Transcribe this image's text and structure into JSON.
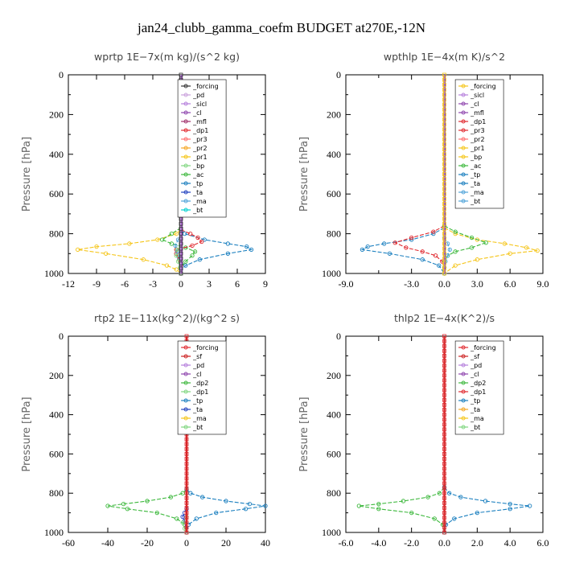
{
  "figure_title": "jan24_clubb_gamma_coefm  BUDGET at270E,-12N",
  "chart_data": [
    {
      "id": "wprtp",
      "type": "line",
      "title": "wprtp   1E−7x(m kg)/(s^2 kg)",
      "ylabel": "Pressure [hPa]",
      "xlim": [
        -12,
        9
      ],
      "ylim": [
        1000,
        0
      ],
      "xticks": [
        "-12",
        "-9",
        "-6",
        "-3",
        "0",
        "3",
        "6",
        "9"
      ],
      "xtick_values": [
        -12,
        -9,
        -6,
        -3,
        0,
        3,
        6,
        9
      ],
      "yticks": [
        "0",
        "200",
        "400",
        "600",
        "800",
        "1000"
      ],
      "yticks_values": [
        0,
        200,
        400,
        600,
        800,
        1000
      ],
      "legend": [
        "_forcing",
        "_pd",
        "_sicl",
        "_cl",
        "_mfl",
        "_dp1",
        "_pr3",
        "_pr2",
        "_pr1",
        "_bp",
        "_ac",
        "_tp",
        "_ta",
        "_ma",
        "_bt"
      ],
      "series": [
        {
          "name": "_pr1",
          "color": "#f5c518",
          "pressure": [
            780,
            800,
            830,
            850,
            865,
            880,
            900,
            930,
            960,
            980,
            1000
          ],
          "values": [
            0,
            -0.5,
            -2.5,
            -5.5,
            -9,
            -11,
            -8,
            -4,
            -1.5,
            -0.5,
            0
          ]
        },
        {
          "name": "_tp",
          "color": "#1a7fbf",
          "pressure": [
            780,
            800,
            830,
            850,
            865,
            880,
            900,
            930,
            960,
            980,
            1000
          ],
          "values": [
            0,
            0.4,
            2.5,
            5,
            7,
            7.5,
            5,
            2,
            0.5,
            0,
            0
          ]
        },
        {
          "name": "_ac",
          "color": "#3cb83c",
          "pressure": [
            770,
            800,
            830,
            850,
            870,
            890,
            910,
            940,
            970,
            1000
          ],
          "values": [
            0,
            -1,
            -2,
            -1,
            0.5,
            1.5,
            1.2,
            0.5,
            0,
            0
          ]
        },
        {
          "name": "_dp1",
          "color": "#e0282e",
          "pressure": [
            780,
            800,
            820,
            840,
            860,
            880,
            900,
            930,
            960,
            1000
          ],
          "values": [
            0,
            1,
            1.8,
            2.2,
            1.2,
            -0.5,
            -0.5,
            -0.2,
            0,
            0
          ]
        },
        {
          "name": "_ma",
          "color": "#4fa3d9",
          "pressure": [
            800,
            830,
            860,
            890,
            920,
            950,
            1000
          ],
          "values": [
            0,
            -0.3,
            -0.6,
            -0.4,
            -0.2,
            0,
            0
          ]
        },
        {
          "name": "_bp",
          "color": "#7fd67f",
          "pressure": [
            850,
            880,
            910,
            940,
            970,
            1000
          ],
          "values": [
            0,
            -0.4,
            -0.5,
            -0.3,
            -0.1,
            0
          ]
        }
      ],
      "center_lines": [
        {
          "name": "_forcing",
          "color": "#333333"
        },
        {
          "name": "_pd",
          "color": "#c9a0dc"
        },
        {
          "name": "_sicl",
          "color": "#b57edc"
        },
        {
          "name": "_cl",
          "color": "#8e44ad"
        }
      ]
    },
    {
      "id": "wpthlp",
      "type": "line",
      "title": "wpthlp   1E−4x(m K)/s^2",
      "ylabel": "Pressure [hPa]",
      "xlim": [
        -9,
        9
      ],
      "ylim": [
        1000,
        0
      ],
      "xticks": [
        "-9.0",
        "-3.0",
        "0.0",
        "3.0",
        "6.0",
        "9.0"
      ],
      "xtick_values": [
        -9,
        -3,
        0,
        3,
        6,
        9
      ],
      "minor_xtick_values": [
        -6
      ],
      "yticks": [
        "0",
        "200",
        "400",
        "600",
        "800",
        "1000"
      ],
      "yticks_values": [
        0,
        200,
        400,
        600,
        800,
        1000
      ],
      "legend": [
        "_forcing",
        "_sicl",
        "_cl",
        "_mfl",
        "_dp1",
        "_pr3",
        "_pr2",
        "_pr1",
        "_bp",
        "_ac",
        "_tp",
        "_ta",
        "_ma",
        "_bt"
      ],
      "series": [
        {
          "name": "_pr1",
          "color": "#f5c518",
          "pressure": [
            770,
            800,
            830,
            850,
            870,
            885,
            900,
            930,
            960,
            1000
          ],
          "values": [
            0,
            1,
            3,
            5.5,
            7.5,
            8.5,
            6,
            3,
            1,
            0
          ]
        },
        {
          "name": "_tp",
          "color": "#1a7fbf",
          "pressure": [
            770,
            800,
            830,
            850,
            865,
            880,
            900,
            930,
            960,
            1000
          ],
          "values": [
            0,
            -1,
            -3,
            -5.5,
            -7,
            -7.5,
            -5,
            -2,
            -0.5,
            0
          ]
        },
        {
          "name": "_dp1",
          "color": "#e0282e",
          "pressure": [
            760,
            790,
            820,
            845,
            870,
            890,
            910,
            940,
            970,
            1000
          ],
          "values": [
            0,
            -1,
            -3,
            -4.5,
            -3.5,
            -2,
            -0.8,
            -0.2,
            0,
            0
          ]
        },
        {
          "name": "_ac",
          "color": "#3cb83c",
          "pressure": [
            760,
            790,
            820,
            845,
            870,
            890,
            910,
            940,
            970,
            1000
          ],
          "values": [
            0,
            1,
            2.5,
            3.8,
            2.5,
            1,
            0.3,
            0,
            0,
            0
          ]
        },
        {
          "name": "_ma",
          "color": "#4fa3d9",
          "pressure": [
            820,
            850,
            880,
            910,
            940,
            1000
          ],
          "values": [
            0,
            0.3,
            0.5,
            0.3,
            0.1,
            0
          ]
        }
      ],
      "center_lines": [
        {
          "name": "_forcing",
          "color": "#f5c518"
        },
        {
          "name": "_sicl",
          "color": "#b57edc"
        },
        {
          "name": "_cl",
          "color": "#8e44ad"
        }
      ]
    },
    {
      "id": "rtp2",
      "type": "line",
      "title": "rtp2   1E−11x(kg^2)/(kg^2 s)",
      "ylabel": "Pressure [hPa]",
      "xlim": [
        -60,
        40
      ],
      "ylim": [
        1000,
        0
      ],
      "xticks": [
        "-60",
        "-40",
        "-20",
        "0",
        "20",
        "40"
      ],
      "xtick_values": [
        -60,
        -40,
        -20,
        0,
        20,
        40
      ],
      "yticks": [
        "0",
        "200",
        "400",
        "600",
        "800",
        "1000"
      ],
      "yticks_values": [
        0,
        200,
        400,
        600,
        800,
        1000
      ],
      "legend": [
        "_forcing",
        "_sf",
        "_pd",
        "_cl",
        "_dp2",
        "_dp1",
        "_tp",
        "_ta",
        "_ma",
        "_bt"
      ],
      "series": [
        {
          "name": "_dp2",
          "color": "#3cb83c",
          "pressure": [
            780,
            800,
            820,
            840,
            855,
            865,
            880,
            900,
            930,
            960,
            1000
          ],
          "values": [
            0,
            -2,
            -8,
            -20,
            -32,
            -40,
            -30,
            -15,
            -5,
            -1,
            0
          ]
        },
        {
          "name": "_tp",
          "color": "#1a7fbf",
          "pressure": [
            780,
            800,
            820,
            840,
            855,
            865,
            880,
            900,
            930,
            960,
            1000
          ],
          "values": [
            0,
            2,
            8,
            20,
            32,
            40,
            30,
            15,
            5,
            1,
            0
          ]
        },
        {
          "name": "_ta",
          "color": "#1f3fbf",
          "pressure": [
            880,
            900,
            920,
            940,
            1000
          ],
          "values": [
            0,
            -1,
            -2,
            -1,
            0
          ]
        },
        {
          "name": "_dp1",
          "color": "#7fd67f",
          "pressure": [
            920,
            950,
            980,
            1000
          ],
          "values": [
            0,
            -2,
            -1,
            0
          ]
        }
      ],
      "center_lines": [
        {
          "name": "_forcing",
          "color": "#e0282e"
        },
        {
          "name": "_sf",
          "color": "#cc2020"
        }
      ]
    },
    {
      "id": "thlp2",
      "type": "line",
      "title": "thlp2   1E−4x(K^2)/s",
      "ylabel": "Pressure [hPa]",
      "xlim": [
        -6,
        6
      ],
      "ylim": [
        1000,
        0
      ],
      "xticks": [
        "-6.0",
        "-4.0",
        "-2.0",
        "0.0",
        "2.0",
        "4.0",
        "6.0"
      ],
      "xtick_values": [
        -6,
        -4,
        -2,
        0,
        2,
        4,
        6
      ],
      "yticks": [
        "0",
        "200",
        "400",
        "600",
        "800",
        "1000"
      ],
      "yticks_values": [
        0,
        200,
        400,
        600,
        800,
        1000
      ],
      "legend": [
        "_forcing",
        "_sf",
        "_pd",
        "_cl",
        "_dp2",
        "_dp1",
        "_tp",
        "_ta",
        "_ma",
        "_bt"
      ],
      "series": [
        {
          "name": "_dp2",
          "color": "#3cb83c",
          "pressure": [
            770,
            800,
            820,
            840,
            855,
            865,
            880,
            900,
            930,
            960,
            1000
          ],
          "values": [
            0,
            -0.3,
            -1,
            -2.5,
            -4,
            -5.2,
            -4,
            -2,
            -0.6,
            -0.1,
            0
          ]
        },
        {
          "name": "_tp",
          "color": "#1a7fbf",
          "pressure": [
            770,
            800,
            820,
            840,
            855,
            865,
            880,
            900,
            930,
            960,
            1000
          ],
          "values": [
            0,
            0.3,
            1,
            2.5,
            4,
            5.2,
            4,
            2,
            0.6,
            0.1,
            0
          ]
        }
      ],
      "center_lines": [
        {
          "name": "_forcing",
          "color": "#e0282e"
        },
        {
          "name": "_sf",
          "color": "#cc2020"
        }
      ]
    }
  ]
}
